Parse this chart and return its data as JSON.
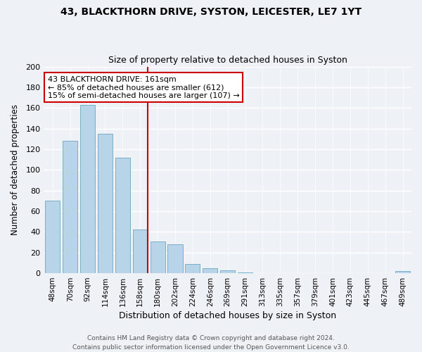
{
  "title_line1": "43, BLACKTHORN DRIVE, SYSTON, LEICESTER, LE7 1YT",
  "title_line2": "Size of property relative to detached houses in Syston",
  "xlabel": "Distribution of detached houses by size in Syston",
  "ylabel": "Number of detached properties",
  "bar_labels": [
    "48sqm",
    "70sqm",
    "92sqm",
    "114sqm",
    "136sqm",
    "158sqm",
    "180sqm",
    "202sqm",
    "224sqm",
    "246sqm",
    "269sqm",
    "291sqm",
    "313sqm",
    "335sqm",
    "357sqm",
    "379sqm",
    "401sqm",
    "423sqm",
    "445sqm",
    "467sqm",
    "489sqm"
  ],
  "bar_values": [
    70,
    128,
    163,
    135,
    112,
    42,
    31,
    28,
    9,
    5,
    3,
    1,
    0,
    0,
    0,
    0,
    0,
    0,
    0,
    0,
    2
  ],
  "bar_color": "#b8d4e8",
  "bar_edge_color": "#7aafc8",
  "vline_color": "#cc0000",
  "annotation_line1": "43 BLACKTHORN DRIVE: 161sqm",
  "annotation_line2": "← 85% of detached houses are smaller (612)",
  "annotation_line3": "15% of semi-detached houses are larger (107) →",
  "annotation_box_color": "#ffffff",
  "annotation_box_edge": "#cc0000",
  "ylim": [
    0,
    200
  ],
  "yticks": [
    0,
    20,
    40,
    60,
    80,
    100,
    120,
    140,
    160,
    180,
    200
  ],
  "footer_line1": "Contains HM Land Registry data © Crown copyright and database right 2024.",
  "footer_line2": "Contains public sector information licensed under the Open Government Licence v3.0.",
  "bg_color": "#eef2f7"
}
